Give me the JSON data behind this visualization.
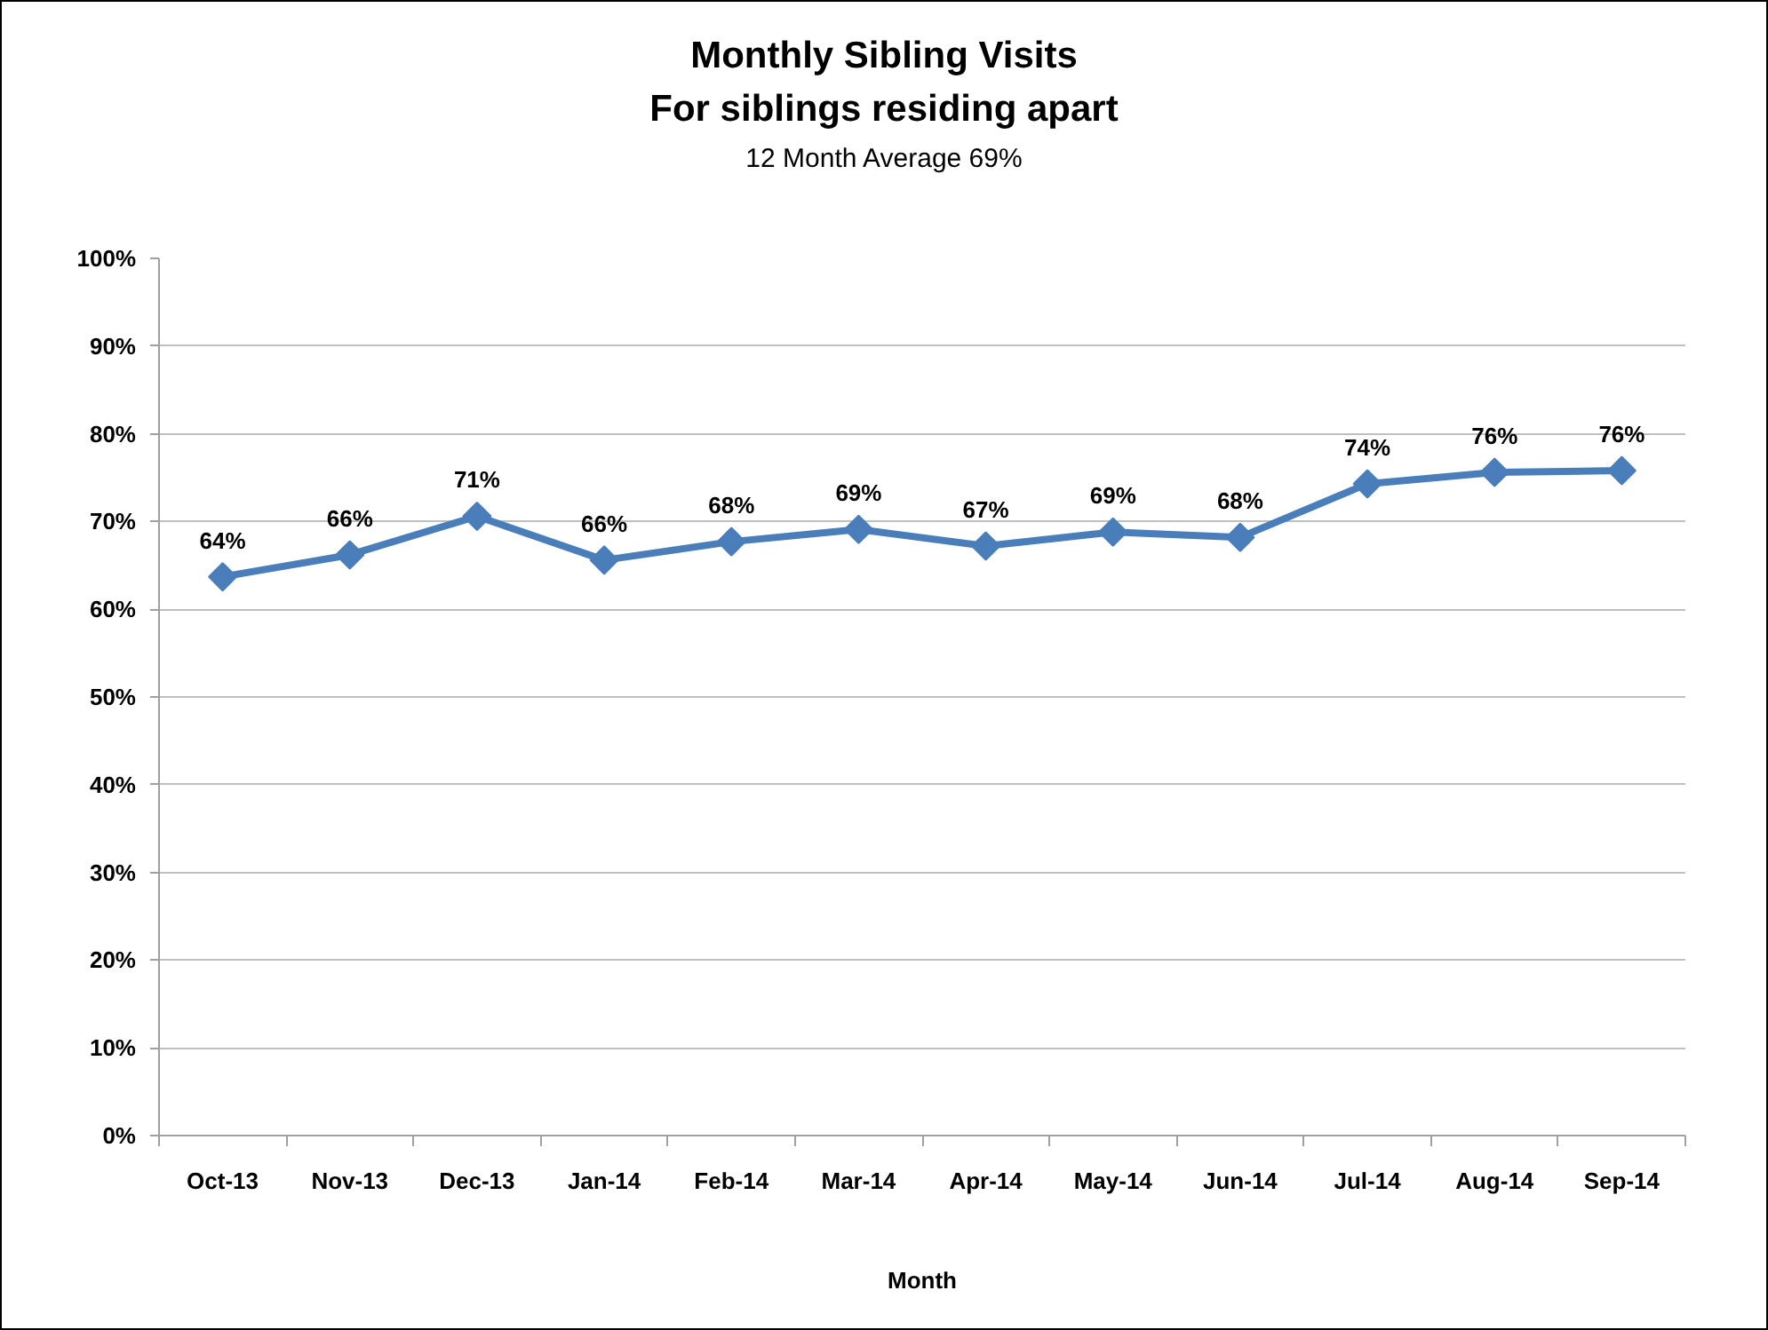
{
  "chart_data": {
    "type": "line",
    "title": "Monthly Sibling Visits",
    "subtitle": "For siblings residing apart",
    "annotations": [
      "12 Month Average 69%"
    ],
    "xlabel": "Month",
    "categories": [
      "Oct-13",
      "Nov-13",
      "Dec-13",
      "Jan-14",
      "Feb-14",
      "Mar-14",
      "Apr-14",
      "May-14",
      "Jun-14",
      "Jul-14",
      "Aug-14",
      "Sep-14"
    ],
    "series": [
      {
        "color": "#4a7ebb",
        "values": [
          63.7,
          66.2,
          70.6,
          65.6,
          67.7,
          69.1,
          67.2,
          68.8,
          68.2,
          74.3,
          75.6,
          75.8
        ],
        "value_labels": [
          "64%",
          "66%",
          "71%",
          "66%",
          "68%",
          "69%",
          "67%",
          "69%",
          "68%",
          "74%",
          "76%",
          "76%"
        ]
      }
    ],
    "ylim": [
      0,
      100
    ],
    "yticks": [
      {
        "value": 0,
        "label": "0%"
      },
      {
        "value": 10,
        "label": "10%"
      },
      {
        "value": 20,
        "label": "20%"
      },
      {
        "value": 30,
        "label": "30%"
      },
      {
        "value": 40,
        "label": "40%"
      },
      {
        "value": 50,
        "label": "50%"
      },
      {
        "value": 60,
        "label": "60%"
      },
      {
        "value": 70,
        "label": "70%"
      },
      {
        "value": 80,
        "label": "80%"
      },
      {
        "value": 90,
        "label": "90%"
      },
      {
        "value": 100,
        "label": "100%"
      }
    ],
    "grid": "y",
    "marker": "diamond",
    "line_style": "solid"
  }
}
